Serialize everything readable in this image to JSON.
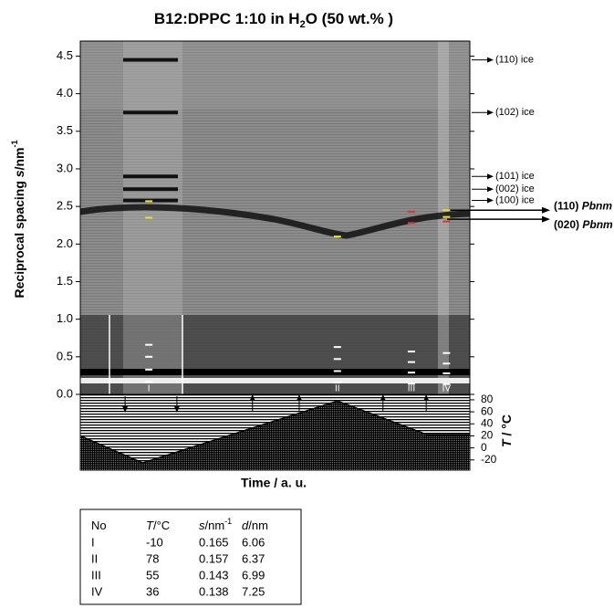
{
  "title_parts": [
    "B12:DPPC 1:10 in H",
    "2",
    "O (50 wt.% )"
  ],
  "chart_data": [
    {
      "type": "heatmap",
      "ylabel_parts": [
        "Reciprocal spacing ",
        "s",
        "/nm",
        "-1"
      ],
      "xlim": [
        0,
        1
      ],
      "ylim": [
        0,
        4.7
      ],
      "yticks": [
        {
          "value": 0,
          "label": "0.0"
        },
        {
          "value": 0.5,
          "label": "0.5"
        },
        {
          "value": 1,
          "label": "1.0"
        },
        {
          "value": 1.5,
          "label": "1.5"
        },
        {
          "value": 2,
          "label": "2.0"
        },
        {
          "value": 2.5,
          "label": "2.5"
        },
        {
          "value": 3,
          "label": "3.0"
        },
        {
          "value": 3.5,
          "label": "3.5"
        },
        {
          "value": 4,
          "label": "4.0"
        },
        {
          "value": 4.5,
          "label": "4.5"
        }
      ],
      "reflections": [
        {
          "s": 4.45,
          "label": "(110) ice"
        },
        {
          "s": 3.75,
          "label": "(102) ice"
        },
        {
          "s": 2.9,
          "label": "(101) ice"
        },
        {
          "s": 2.73,
          "label": "(002) ice"
        },
        {
          "s": 2.58,
          "label": "(100) ice"
        }
      ],
      "phase_reflections": [
        {
          "s": 2.45,
          "label": "(110)",
          "phase": "Pbnm"
        },
        {
          "s": 2.33,
          "label": "(020)",
          "phase": "Pbnm"
        }
      ],
      "regions": [
        {
          "x": 0.176,
          "label": "I"
        },
        {
          "x": 0.66,
          "label": "II"
        },
        {
          "x": 0.85,
          "label": "III"
        },
        {
          "x": 0.94,
          "label": "IV"
        }
      ],
      "series": [
        {
          "color": "#ffffff",
          "x": [
            0.176,
            0.176,
            0.176,
            0.176,
            0.66,
            0.66,
            0.66,
            0.66,
            0.85,
            0.85,
            0.85,
            0.85,
            0.94,
            0.94,
            0.94,
            0.94
          ],
          "y": [
            0.165,
            0.33,
            0.5,
            0.66,
            0.157,
            0.31,
            0.47,
            0.63,
            0.143,
            0.29,
            0.43,
            0.57,
            0.138,
            0.28,
            0.41,
            0.55
          ]
        },
        {
          "color": "#f0e020",
          "x": [
            0.176,
            0.176,
            0.66,
            0.94,
            0.94
          ],
          "y": [
            2.57,
            2.35,
            2.1,
            2.45,
            2.36
          ]
        },
        {
          "color": "#e03030",
          "x": [
            0.85,
            0.85,
            0.94
          ],
          "y": [
            2.43,
            2.28,
            2.3
          ]
        }
      ],
      "time_arrows_down": [
        0.115,
        0.248
      ],
      "time_arrows_up": [
        0.442,
        0.562,
        0.777,
        0.888
      ]
    },
    {
      "type": "line",
      "xlabel": "Time  / a. u.",
      "ylabel_parts": [
        "T",
        " / °C"
      ],
      "xlim": [
        0,
        1
      ],
      "ylim": [
        -37,
        89
      ],
      "yticks": [
        -20,
        0,
        20,
        40,
        60,
        80
      ],
      "x": [
        0,
        0.16,
        0.66,
        0.89,
        1
      ],
      "series": [
        {
          "color": "#000000",
          "values": [
            20,
            -25,
            78,
            22,
            22
          ]
        }
      ]
    }
  ],
  "table": {
    "header": [
      [
        "No"
      ],
      [
        "T",
        "/°C"
      ],
      [
        "s",
        "/nm",
        "-1"
      ],
      [
        "d",
        "/nm"
      ]
    ],
    "rows": [
      [
        "I",
        "-10",
        "0.165",
        "6.06"
      ],
      [
        "II",
        "78",
        "0.157",
        "6.37"
      ],
      [
        "III",
        "55",
        "0.143",
        "6.99"
      ],
      [
        "IV",
        "36",
        "0.138",
        "7.25"
      ]
    ]
  }
}
